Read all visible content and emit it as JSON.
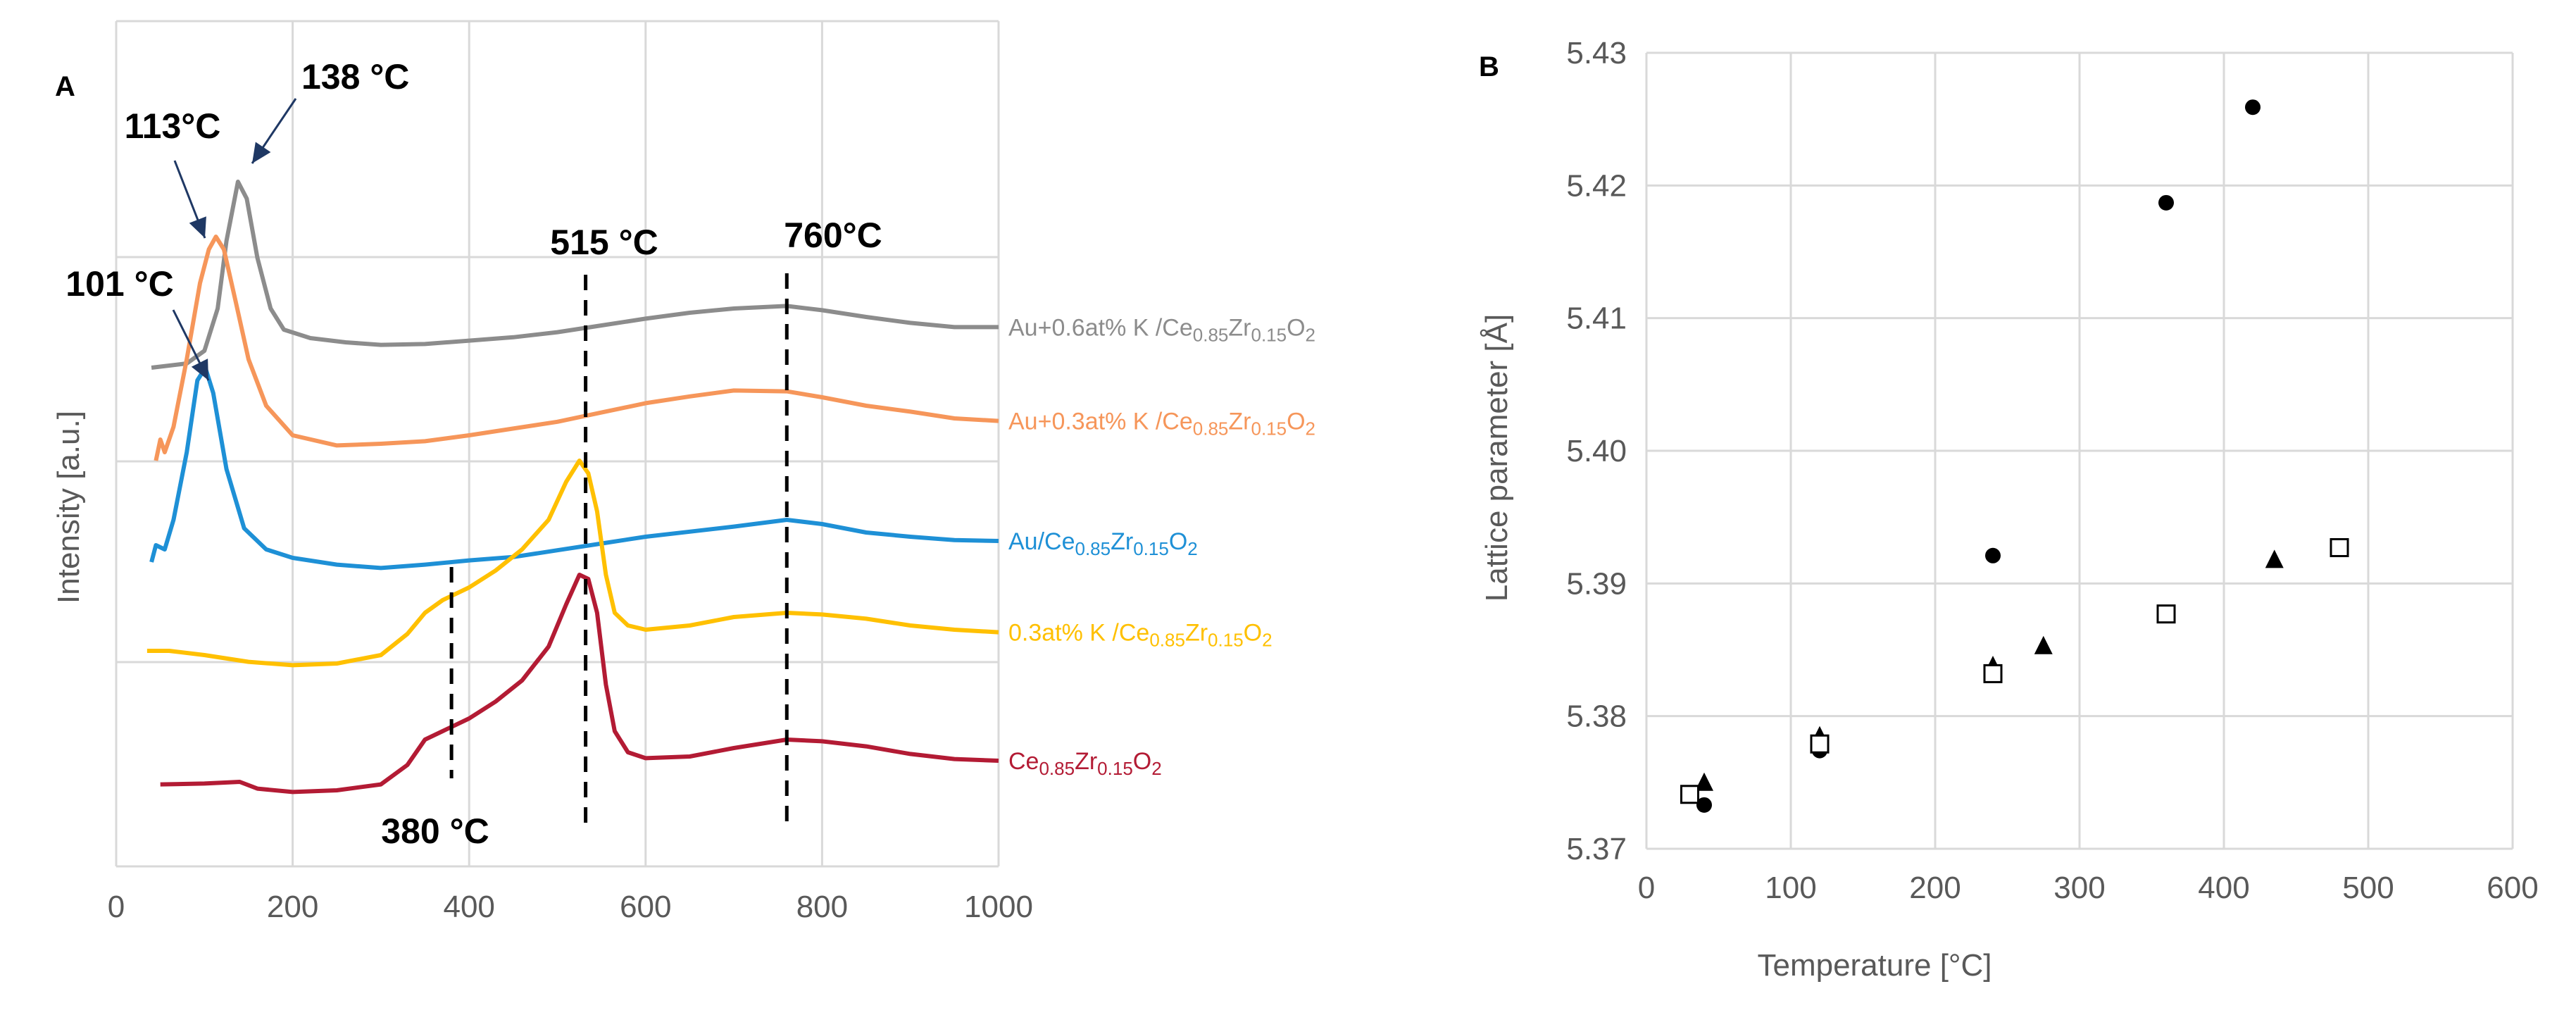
{
  "chart_data": [
    {
      "panel": "A",
      "type": "line",
      "ylabel": "Intensity [a.u.]",
      "xlabel": "",
      "xlim": [
        0,
        1000
      ],
      "xticks": [
        0,
        200,
        400,
        600,
        800,
        1000
      ],
      "yticks_labeled": false,
      "series": [
        {
          "name": "Au+0.6at% K /Ce0.85Zr0.15O2",
          "label_parts": [
            "Au+0.6at% K /Ce",
            "0.85",
            "Zr",
            "0.15",
            "O",
            "2"
          ],
          "color": "#8c8c8c",
          "x": [
            40,
            80,
            100,
            115,
            125,
            138,
            148,
            160,
            175,
            190,
            220,
            260,
            300,
            350,
            400,
            450,
            500,
            550,
            600,
            650,
            700,
            760,
            800,
            850,
            900,
            950,
            1000
          ],
          "y": [
            0.59,
            0.595,
            0.61,
            0.66,
            0.74,
            0.81,
            0.79,
            0.72,
            0.66,
            0.635,
            0.625,
            0.62,
            0.617,
            0.618,
            0.622,
            0.626,
            0.632,
            0.64,
            0.648,
            0.655,
            0.66,
            0.663,
            0.658,
            0.65,
            0.643,
            0.638,
            0.638
          ]
        },
        {
          "name": "Au+0.3at% K /Ce0.85Zr0.15O2",
          "label_parts": [
            "Au+0.3at% K /Ce",
            "0.85",
            "Zr",
            "0.15",
            "O",
            "2"
          ],
          "color": "#f6965a",
          "x": [
            45,
            50,
            55,
            65,
            80,
            95,
            105,
            113,
            122,
            135,
            150,
            170,
            200,
            250,
            300,
            350,
            400,
            450,
            500,
            550,
            600,
            650,
            700,
            760,
            800,
            850,
            900,
            950,
            1000
          ],
          "y": [
            0.48,
            0.505,
            0.49,
            0.52,
            0.6,
            0.69,
            0.73,
            0.745,
            0.73,
            0.67,
            0.6,
            0.545,
            0.51,
            0.498,
            0.5,
            0.503,
            0.51,
            0.518,
            0.526,
            0.537,
            0.548,
            0.556,
            0.563,
            0.562,
            0.555,
            0.545,
            0.538,
            0.53,
            0.527
          ]
        },
        {
          "name": "Au/Ce0.85Zr0.15O2",
          "label_parts": [
            "Au/Ce",
            "0.85",
            "Zr",
            "0.15",
            "O",
            "2"
          ],
          "color": "#1e90d6",
          "x": [
            40,
            45,
            55,
            65,
            80,
            92,
            101,
            110,
            125,
            145,
            170,
            200,
            250,
            300,
            350,
            400,
            450,
            500,
            550,
            600,
            650,
            700,
            760,
            800,
            850,
            900,
            950,
            1000
          ],
          "y": [
            0.36,
            0.38,
            0.375,
            0.41,
            0.49,
            0.575,
            0.59,
            0.56,
            0.47,
            0.4,
            0.375,
            0.365,
            0.357,
            0.353,
            0.357,
            0.362,
            0.366,
            0.374,
            0.382,
            0.39,
            0.396,
            0.402,
            0.41,
            0.405,
            0.395,
            0.39,
            0.386,
            0.385
          ]
        },
        {
          "name": "0.3at% K /Ce0.85Zr0.15O2",
          "label_parts": [
            "0.3at% K /Ce",
            "0.85",
            "Zr",
            "0.15",
            "O",
            "2"
          ],
          "color": "#ffc000",
          "x": [
            35,
            60,
            100,
            150,
            200,
            250,
            300,
            330,
            350,
            370,
            400,
            430,
            460,
            490,
            510,
            525,
            535,
            545,
            555,
            565,
            580,
            600,
            650,
            700,
            760,
            800,
            850,
            900,
            950,
            1000
          ],
          "y": [
            0.255,
            0.255,
            0.25,
            0.242,
            0.238,
            0.24,
            0.25,
            0.275,
            0.3,
            0.315,
            0.33,
            0.35,
            0.375,
            0.41,
            0.455,
            0.48,
            0.465,
            0.42,
            0.345,
            0.3,
            0.285,
            0.28,
            0.285,
            0.295,
            0.3,
            0.298,
            0.293,
            0.285,
            0.28,
            0.277
          ]
        },
        {
          "name": "Ce0.85Zr0.15O2",
          "label_parts": [
            "Ce",
            "0.85",
            "Zr",
            "0.15",
            "O",
            "2"
          ],
          "color": "#b31b34",
          "x": [
            50,
            100,
            140,
            160,
            200,
            250,
            300,
            330,
            350,
            370,
            400,
            430,
            460,
            490,
            510,
            525,
            535,
            545,
            555,
            565,
            580,
            600,
            650,
            700,
            760,
            800,
            850,
            900,
            950,
            1000
          ],
          "y": [
            0.097,
            0.098,
            0.1,
            0.092,
            0.088,
            0.09,
            0.097,
            0.12,
            0.15,
            0.16,
            0.175,
            0.195,
            0.22,
            0.26,
            0.31,
            0.345,
            0.34,
            0.3,
            0.215,
            0.16,
            0.135,
            0.128,
            0.13,
            0.14,
            0.15,
            0.148,
            0.142,
            0.133,
            0.127,
            0.125
          ]
        }
      ],
      "annotations": [
        {
          "text": "138 °C",
          "x": 138
        },
        {
          "text": "113°C",
          "x": 113
        },
        {
          "text": "101 °C",
          "x": 101
        },
        {
          "text": "515 °C",
          "x": 515
        },
        {
          "text": "760°C",
          "x": 760
        },
        {
          "text": "380 °C",
          "x": 380
        }
      ]
    },
    {
      "panel": "B",
      "type": "scatter",
      "xlabel": "Temperature [°C]",
      "ylabel": "Lattice parameter [Å]",
      "xlim": [
        0,
        600
      ],
      "ylim": [
        5.37,
        5.43
      ],
      "xticks": [
        0,
        100,
        200,
        300,
        400,
        500,
        600
      ],
      "yticks": [
        5.37,
        5.38,
        5.39,
        5.4,
        5.41,
        5.42,
        5.43
      ],
      "series": [
        {
          "name": "circles",
          "marker": "circle",
          "x": [
            40,
            120,
            240,
            360,
            420
          ],
          "y": [
            5.3733,
            5.3774,
            5.3921,
            5.4187,
            5.4259
          ]
        },
        {
          "name": "triangles",
          "marker": "triangle",
          "x": [
            40,
            120,
            240,
            275,
            435
          ],
          "y": [
            5.3749,
            5.3784,
            5.3837,
            5.3852,
            5.3917
          ]
        },
        {
          "name": "squares",
          "marker": "square-open",
          "x": [
            30,
            120,
            240,
            360,
            480
          ],
          "y": [
            5.3741,
            5.3779,
            5.3832,
            5.3877,
            5.3927
          ]
        }
      ]
    }
  ]
}
